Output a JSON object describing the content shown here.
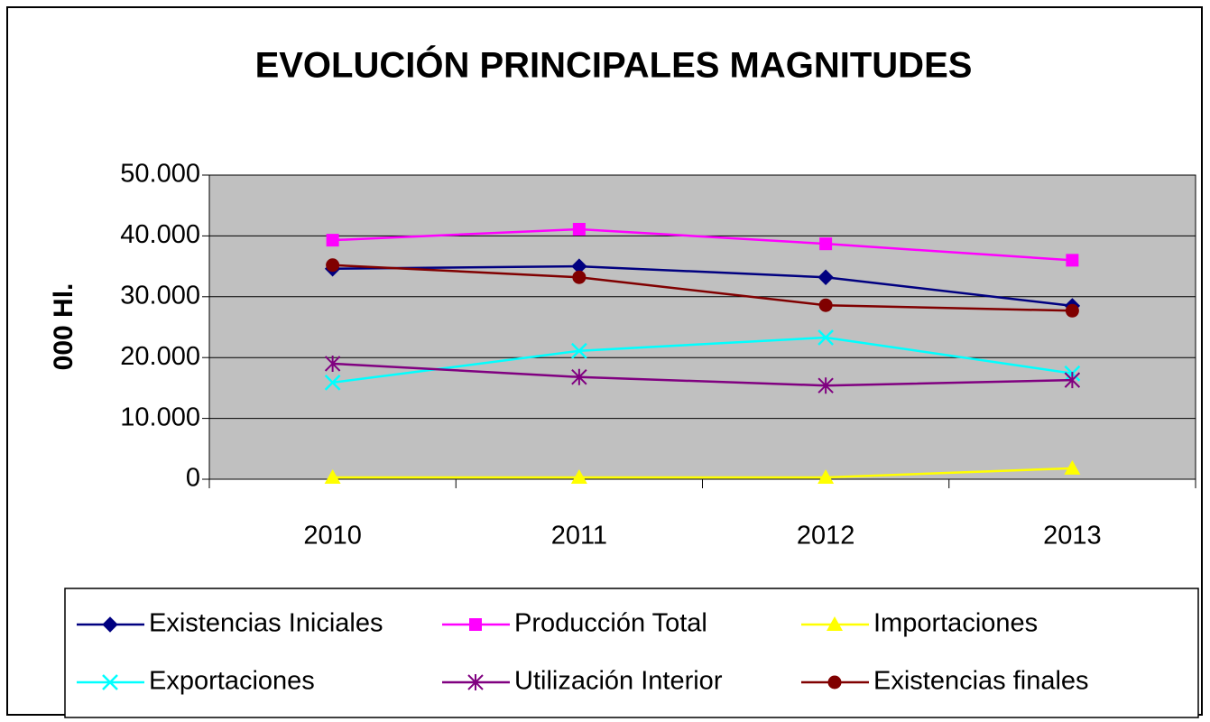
{
  "chart_data": {
    "type": "line",
    "title": "EVOLUCIÓN PRINCIPALES MAGNITUDES",
    "y_label": "000 Hl.",
    "categories": [
      "2010",
      "2011",
      "2012",
      "2013"
    ],
    "series": [
      {
        "name": "Existencias Iniciales",
        "color": "#000080",
        "marker": "diamond",
        "values": [
          34600,
          35000,
          33200,
          28500
        ]
      },
      {
        "name": "Producción Total",
        "color": "#ff00ff",
        "marker": "square",
        "values": [
          39300,
          41100,
          38700,
          36000
        ]
      },
      {
        "name": "Importaciones",
        "color": "#ffff00",
        "marker": "triangle",
        "values": [
          300,
          300,
          300,
          1800
        ]
      },
      {
        "name": "Exportaciones",
        "color": "#00ffff",
        "marker": "x",
        "values": [
          15900,
          21100,
          23300,
          17400
        ]
      },
      {
        "name": "Utilización Interior",
        "color": "#800080",
        "marker": "star",
        "values": [
          19000,
          16800,
          15400,
          16300
        ]
      },
      {
        "name": "Existencias finales",
        "color": "#800000",
        "marker": "circle",
        "values": [
          35200,
          33200,
          28600,
          27700
        ]
      }
    ],
    "ylim": [
      0,
      50000
    ],
    "yticks": [
      0,
      {
        "value": 10000,
        "label": "10.000"
      },
      {
        "value": 20000,
        "label": "20.000"
      },
      {
        "value": 30000,
        "label": "30.000"
      },
      {
        "value": 40000,
        "label": "40.000"
      },
      {
        "value": 50000,
        "label": "50.000"
      }
    ],
    "grid": true,
    "plot_background": "#c0c0c0",
    "legend": "bottom"
  }
}
